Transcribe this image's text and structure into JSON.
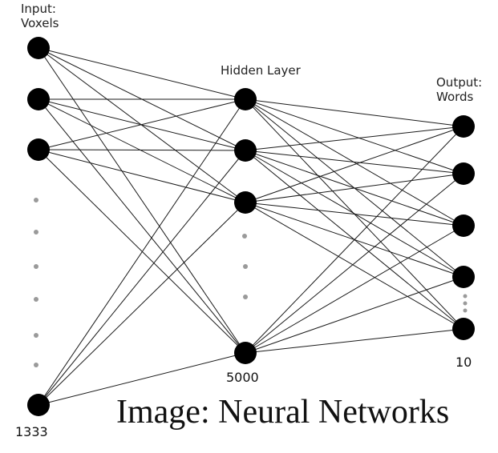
{
  "labels": {
    "input_line1": "Input:",
    "input_line2": "Voxels",
    "hidden": "Hidden Layer",
    "output_line1": "Output:",
    "output_line2": "Words"
  },
  "counts": {
    "input": "1333",
    "hidden": "5000",
    "output": "10"
  },
  "caption": "Image: Neural Networks",
  "colors": {
    "node": "#000000",
    "edge": "#1a1a1a",
    "ellipsis_dot": "#9a9a9a",
    "background": "#ffffff"
  }
}
